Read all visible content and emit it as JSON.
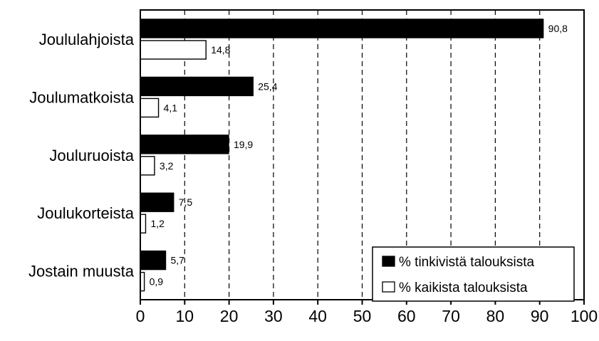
{
  "chart_data": {
    "type": "bar",
    "orientation": "horizontal",
    "categories": [
      "Joululahjoista",
      "Joulumatkoista",
      "Jouluruoista",
      "Joulukorteista",
      "Jostain muusta"
    ],
    "series": [
      {
        "name": "% tinkivistä talouksista",
        "values": [
          90.8,
          25.4,
          19.9,
          7.5,
          5.7
        ],
        "labels": [
          "90,8",
          "25,4",
          "19,9",
          "7,5",
          "5,7"
        ],
        "color": "#000000"
      },
      {
        "name": "% kaikista talouksista",
        "values": [
          14.8,
          4.1,
          3.2,
          1.2,
          0.9
        ],
        "labels": [
          "14,8",
          "4,1",
          "3,2",
          "1,2",
          "0,9"
        ],
        "color": "#ffffff"
      }
    ],
    "xlim": [
      0,
      100
    ],
    "xticks": [
      "0",
      "10",
      "20",
      "30",
      "40",
      "50",
      "60",
      "70",
      "80",
      "90",
      "100"
    ],
    "grid": "vertical-dashed",
    "legend_position": "bottom-right",
    "title": "",
    "xlabel": "",
    "ylabel": ""
  }
}
